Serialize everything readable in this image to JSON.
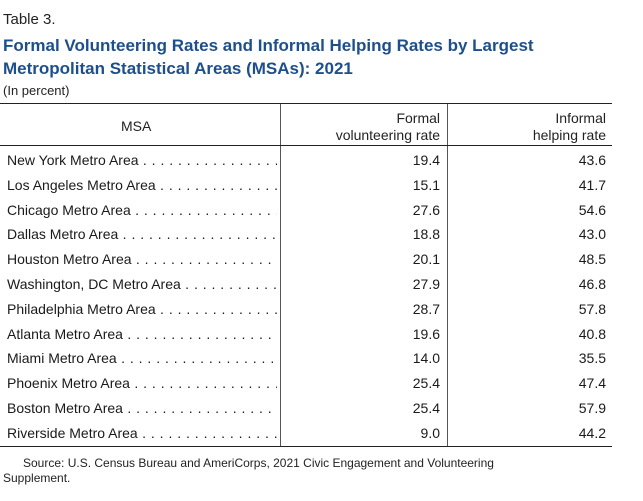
{
  "table_label": "Table 3.",
  "title": "Formal Volunteering Rates and Informal Helping Rates by Largest Metropolitan Statistical Areas (MSAs): 2021",
  "unit_note": "(In percent)",
  "columns": {
    "msa": "MSA",
    "formal_line1": "Formal",
    "formal_line2": "volunteering rate",
    "informal_line1": "Informal",
    "informal_line2": "helping rate"
  },
  "rows": [
    {
      "msa": "New York Metro Area",
      "formal": "19.4",
      "informal": "43.6"
    },
    {
      "msa": "Los Angeles Metro Area",
      "formal": "15.1",
      "informal": "41.7"
    },
    {
      "msa": "Chicago Metro Area",
      "formal": "27.6",
      "informal": "54.6"
    },
    {
      "msa": "Dallas Metro Area",
      "formal": "18.8",
      "informal": "43.0"
    },
    {
      "msa": "Houston Metro Area",
      "formal": "20.1",
      "informal": "48.5"
    },
    {
      "msa": "Washington, DC Metro Area",
      "formal": "27.9",
      "informal": "46.8"
    },
    {
      "msa": "Philadelphia Metro Area",
      "formal": "28.7",
      "informal": "57.8"
    },
    {
      "msa": "Atlanta Metro Area",
      "formal": "19.6",
      "informal": "40.8"
    },
    {
      "msa": "Miami Metro Area",
      "formal": "14.0",
      "informal": "35.5"
    },
    {
      "msa": "Phoenix Metro Area",
      "formal": "25.4",
      "informal": "47.4"
    },
    {
      "msa": "Boston Metro Area",
      "formal": "25.4",
      "informal": "57.9"
    },
    {
      "msa": "Riverside Metro Area",
      "formal": "9.0",
      "informal": "44.2"
    }
  ],
  "source_line1": "Source: U.S. Census Bureau and AmeriCorps, 2021 Civic Engagement and Volunteering",
  "source_line2": "Supplement.",
  "colors": {
    "title": "#1d4f8c",
    "text": "#1a1a1a"
  }
}
